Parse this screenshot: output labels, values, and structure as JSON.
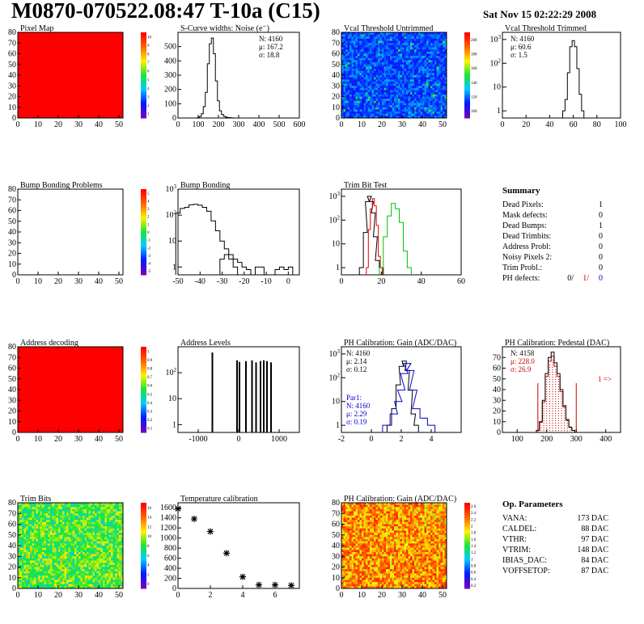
{
  "header": {
    "title": "M0870-070522.08:47 T-10a (C15)",
    "date": "Sat Nov 15 02:22:29 2008"
  },
  "colors": {
    "pixel_map": "#ff0000",
    "line": "#000000",
    "trim_red": "#e00000",
    "trim_green": "#00c000",
    "par1_blue": "#0000cc",
    "pedestal_red": "#cc0000"
  },
  "chart_data": [
    {
      "id": "pixel-map",
      "type": "heatmap",
      "title": "Pixel Map",
      "xlim": [
        0,
        52
      ],
      "ylim": [
        0,
        80
      ],
      "xticks": [
        "0",
        "10",
        "20",
        "30",
        "40",
        "50"
      ],
      "yticks": [
        "0",
        "10",
        "20",
        "30",
        "40",
        "50",
        "60",
        "70",
        "80"
      ],
      "zticks": [
        "10",
        "9",
        "8",
        "7",
        "6",
        "5",
        "4",
        "3",
        "2",
        "1"
      ],
      "fill": "uniform-red"
    },
    {
      "id": "s-curve",
      "type": "line",
      "title": "S-Curve widths: Noise (e⁻)",
      "xlim": [
        0,
        600
      ],
      "ylim": [
        0,
        600
      ],
      "xticks": [
        "0",
        "100",
        "200",
        "300",
        "400",
        "500",
        "600"
      ],
      "yticks": [
        "0",
        "100",
        "200",
        "300",
        "400",
        "500"
      ],
      "stats": [
        "N: 4160",
        "μ: 167.2",
        "σ: 18.8"
      ],
      "x": [
        90,
        100,
        110,
        120,
        130,
        140,
        150,
        160,
        170,
        180,
        190,
        200,
        210,
        220,
        230,
        240,
        250,
        260,
        270,
        280
      ],
      "y": [
        0,
        2,
        10,
        30,
        80,
        180,
        380,
        520,
        560,
        450,
        260,
        120,
        50,
        25,
        12,
        6,
        3,
        2,
        1,
        0
      ]
    },
    {
      "id": "vcal-untrimmed",
      "type": "heatmap",
      "title": "Vcal Threshold Untrimmed",
      "xlim": [
        0,
        52
      ],
      "ylim": [
        0,
        80
      ],
      "xticks": [
        "0",
        "10",
        "20",
        "30",
        "40",
        "50"
      ],
      "yticks": [
        "0",
        "10",
        "20",
        "30",
        "40",
        "50",
        "60",
        "70",
        "80"
      ],
      "zticks": [
        "200",
        "180",
        "160",
        "140",
        "120",
        "100"
      ],
      "fill": "noise-blue"
    },
    {
      "id": "vcal-trimmed",
      "type": "line",
      "title": "Vcal Threshold Trimmed",
      "xlim": [
        0,
        100
      ],
      "ylog": true,
      "ylim": [
        0.5,
        2000
      ],
      "xticks": [
        "0",
        "20",
        "40",
        "60",
        "80",
        "100"
      ],
      "ytick_labels": [
        "1",
        "10",
        "10²",
        "10³"
      ],
      "stats": [
        "N: 4160",
        "μ: 60.6",
        "σ:  1.5"
      ],
      "x": [
        52,
        54,
        56,
        58,
        60,
        62,
        64,
        66,
        68
      ],
      "y": [
        1,
        3,
        40,
        500,
        900,
        500,
        60,
        5,
        1
      ]
    },
    {
      "id": "bump-problems",
      "type": "heatmap",
      "title": "Bump Bonding Problems",
      "xlim": [
        0,
        52
      ],
      "ylim": [
        0,
        80
      ],
      "xticks": [
        "0",
        "10",
        "20",
        "30",
        "40",
        "50"
      ],
      "yticks": [
        "0",
        "10",
        "20",
        "30",
        "40",
        "50",
        "60",
        "70",
        "80"
      ],
      "zticks": [
        "5",
        "4",
        "3",
        "2",
        "1",
        "0",
        "-1",
        "-2",
        "-3",
        "-4",
        "-5"
      ],
      "fill": "empty"
    },
    {
      "id": "bump-bonding",
      "type": "line",
      "title": "Bump Bonding",
      "xlim": [
        -50,
        5
      ],
      "ylog": true,
      "ylim": [
        0.5,
        1000
      ],
      "xticks": [
        "-50",
        "-40",
        "-30",
        "-20",
        "-10",
        "0"
      ],
      "ytick_labels": [
        "1",
        "10",
        "10²",
        "10³"
      ],
      "x": [
        -50,
        -48,
        -46,
        -44,
        -42,
        -40,
        -38,
        -36,
        -34,
        -32,
        -30,
        -28,
        -26,
        -24,
        -22,
        -20,
        -18
      ],
      "y": [
        120,
        180,
        200,
        250,
        260,
        240,
        200,
        140,
        60,
        25,
        10,
        5,
        3,
        2,
        1.5,
        1,
        0.8
      ]
    },
    {
      "id": "trim-bit-test",
      "type": "line",
      "title": "Trim Bit Test",
      "xlim": [
        0,
        60
      ],
      "ylog": true,
      "ylim": [
        0.5,
        2000
      ],
      "xticks": [
        "0",
        "20",
        "40",
        "60"
      ],
      "ytick_labels": [
        "1",
        "10",
        "10²",
        "10³"
      ],
      "series": [
        {
          "color": "black",
          "x": [
            10,
            12,
            13,
            14,
            15,
            16,
            17,
            18,
            20
          ],
          "y": [
            1,
            30,
            600,
            1000,
            600,
            200,
            20,
            2,
            1
          ]
        },
        {
          "color": "red",
          "x": [
            13,
            14,
            15,
            16,
            17,
            18,
            19,
            20
          ],
          "y": [
            1,
            40,
            300,
            800,
            400,
            60,
            3,
            1
          ]
        },
        {
          "color": "green",
          "x": [
            20,
            22,
            24,
            26,
            28,
            30,
            32,
            34
          ],
          "y": [
            1,
            20,
            150,
            500,
            300,
            80,
            5,
            1
          ]
        }
      ]
    },
    {
      "id": "summary",
      "type": "table",
      "title": "Summary",
      "rows": [
        {
          "label": "Dead Pixels:",
          "value": "1"
        },
        {
          "label": "Mask defects:",
          "value": "0"
        },
        {
          "label": "Dead Bumps:",
          "value": "1"
        },
        {
          "label": "Dead Trimbits:",
          "value": "0"
        },
        {
          "label": "Address Probl:",
          "value": "0"
        },
        {
          "label": "Noisy Pixels 2:",
          "value": "0"
        },
        {
          "label": "Trim Probl.:",
          "value": "0"
        }
      ],
      "ph_defects": {
        "label": "PH defects:",
        "v1": "0/",
        "v2": "1/",
        "v3": "0"
      }
    },
    {
      "id": "address-decoding",
      "type": "heatmap",
      "title": "Address decoding",
      "xlim": [
        0,
        52
      ],
      "ylim": [
        0,
        80
      ],
      "xticks": [
        "0",
        "10",
        "20",
        "30",
        "40",
        "50"
      ],
      "yticks": [
        "0",
        "10",
        "20",
        "30",
        "40",
        "50",
        "60",
        "70",
        "80"
      ],
      "zticks": [
        "1",
        "0.9",
        "0.8",
        "0.7",
        "0.6",
        "0.5",
        "0.4",
        "0.3",
        "0.2",
        "0.1"
      ],
      "fill": "uniform-red"
    },
    {
      "id": "address-levels",
      "type": "bar",
      "title": "Address Levels",
      "xlim": [
        -1500,
        1500
      ],
      "ylog": true,
      "ylim": [
        0.5,
        1000
      ],
      "xticks": [
        "-1000",
        "0",
        "1000"
      ],
      "ytick_labels": [
        "1",
        "10",
        "10²"
      ],
      "x": [
        -650,
        -40,
        20,
        180,
        330,
        430,
        540,
        620,
        700,
        800
      ],
      "y": [
        600,
        300,
        260,
        280,
        300,
        250,
        280,
        300,
        280,
        250
      ]
    },
    {
      "id": "ph-gain",
      "type": "line",
      "title": "PH Calibration: Gain (ADC/DAC)",
      "xlim": [
        -2,
        6
      ],
      "ylog": true,
      "ylim": [
        0.5,
        2000
      ],
      "xticks": [
        "-2",
        "0",
        "2",
        "4"
      ],
      "ytick_labels": [
        "1",
        "10",
        "10²",
        "10³"
      ],
      "stats": [
        "N: 4160",
        "μ: 2.14",
        "σ: 0.12"
      ],
      "par1_stats": [
        "Par1:",
        "N: 4160",
        "μ: 2.29",
        "σ: 0.19"
      ],
      "series": [
        {
          "color": "black",
          "x": [
            1.2,
            1.5,
            1.8,
            2.0,
            2.2,
            2.4,
            2.6,
            2.8,
            3.0
          ],
          "y": [
            1,
            5,
            50,
            300,
            500,
            200,
            30,
            3,
            1
          ]
        },
        {
          "color": "blue",
          "x": [
            1.0,
            1.5,
            1.8,
            2.0,
            2.2,
            2.4,
            2.6,
            2.8,
            3.0,
            3.5,
            4.0
          ],
          "y": [
            1,
            3,
            10,
            30,
            150,
            400,
            200,
            30,
            5,
            2,
            1
          ]
        }
      ]
    },
    {
      "id": "ph-pedestal",
      "type": "line",
      "title": "PH Calibration: Pedestal (DAC)",
      "xlim": [
        50,
        450
      ],
      "ylim": [
        0,
        80
      ],
      "xticks": [
        "100",
        "200",
        "300",
        "400"
      ],
      "yticks": [
        "0",
        "10",
        "20",
        "30",
        "40",
        "50",
        "60",
        "70"
      ],
      "stats": [
        "N: 4158",
        "μ: 228.0",
        "σ: 26.9"
      ],
      "annotation": "1 =>",
      "x": [
        160,
        170,
        180,
        190,
        200,
        210,
        220,
        230,
        240,
        250,
        260,
        270,
        280,
        290,
        300
      ],
      "y": [
        0,
        2,
        10,
        30,
        55,
        70,
        75,
        65,
        55,
        40,
        25,
        12,
        5,
        2,
        0
      ]
    },
    {
      "id": "trim-bits",
      "type": "heatmap",
      "title": "Trim Bits",
      "xlim": [
        0,
        52
      ],
      "ylim": [
        0,
        80
      ],
      "xticks": [
        "0",
        "10",
        "20",
        "30",
        "40",
        "50"
      ],
      "yticks": [
        "0",
        "10",
        "20",
        "30",
        "40",
        "50",
        "60",
        "70",
        "80"
      ],
      "zticks": [
        "16",
        "14",
        "12",
        "10",
        "8",
        "6",
        "4",
        "2",
        "0"
      ],
      "fill": "noise-green"
    },
    {
      "id": "temperature",
      "type": "scatter",
      "title": "Temperature calibration",
      "xlim": [
        0,
        7.5
      ],
      "ylim": [
        0,
        1700
      ],
      "xticks": [
        "0",
        "2",
        "4",
        "6"
      ],
      "yticks": [
        "0",
        "200",
        "400",
        "600",
        "800",
        "1000",
        "1200",
        "1400",
        "1600"
      ],
      "x": [
        0,
        1,
        2,
        3,
        4,
        5,
        6,
        7
      ],
      "y": [
        1580,
        1380,
        1130,
        700,
        230,
        70,
        70,
        60
      ]
    },
    {
      "id": "ph-gain-map",
      "type": "heatmap",
      "title": "PH Calibration: Gain (ADC/DAC)",
      "xlim": [
        0,
        52
      ],
      "ylim": [
        0,
        80
      ],
      "xticks": [
        "0",
        "10",
        "20",
        "30",
        "40",
        "50"
      ],
      "yticks": [
        "0",
        "10",
        "20",
        "30",
        "40",
        "50",
        "60",
        "70",
        "80"
      ],
      "zticks": [
        "2.6",
        "2.4",
        "2.2",
        "2",
        "1.8",
        "1.6",
        "1.4",
        "1.2",
        "1",
        "0.8",
        "0.6",
        "0.4",
        "0.2"
      ],
      "fill": "noise-orange"
    },
    {
      "id": "op-params",
      "type": "table",
      "title": "Op. Parameters",
      "rows": [
        {
          "label": "VANA:",
          "value": "173 DAC"
        },
        {
          "label": "CALDEL:",
          "value": "88 DAC"
        },
        {
          "label": "VTHR:",
          "value": "97 DAC"
        },
        {
          "label": "VTRIM:",
          "value": "148 DAC"
        },
        {
          "label": "IBIAS_DAC:",
          "value": "84 DAC"
        },
        {
          "label": "VOFFSETOP:",
          "value": "87 DAC"
        }
      ]
    }
  ]
}
